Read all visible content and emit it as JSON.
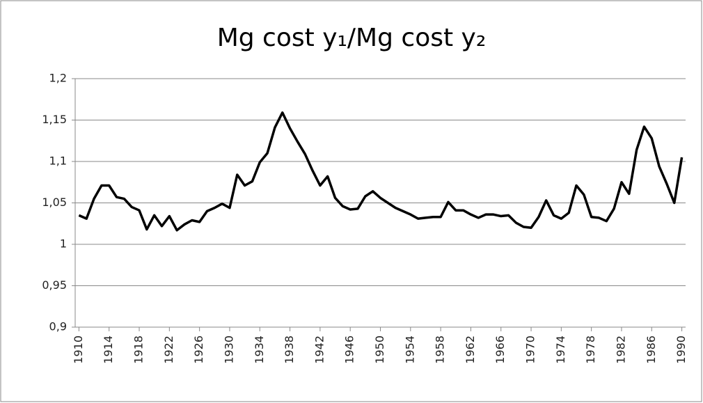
{
  "chart_data": {
    "type": "line",
    "title": "Mg cost y₁/Mg cost y₂",
    "x": [
      1910,
      1911,
      1912,
      1913,
      1914,
      1915,
      1916,
      1917,
      1918,
      1919,
      1920,
      1921,
      1922,
      1923,
      1924,
      1925,
      1926,
      1927,
      1928,
      1929,
      1930,
      1931,
      1932,
      1933,
      1934,
      1935,
      1936,
      1937,
      1938,
      1939,
      1940,
      1941,
      1942,
      1943,
      1944,
      1945,
      1946,
      1947,
      1948,
      1949,
      1950,
      1951,
      1952,
      1953,
      1954,
      1955,
      1956,
      1957,
      1958,
      1959,
      1960,
      1961,
      1962,
      1963,
      1964,
      1965,
      1966,
      1967,
      1968,
      1969,
      1970,
      1971,
      1972,
      1973,
      1974,
      1975,
      1976,
      1977,
      1978,
      1979,
      1980,
      1981,
      1982,
      1983,
      1984,
      1985,
      1986,
      1987,
      1988,
      1989,
      1990
    ],
    "values": [
      1.035,
      1.031,
      1.055,
      1.071,
      1.071,
      1.057,
      1.055,
      1.045,
      1.041,
      1.018,
      1.035,
      1.022,
      1.034,
      1.017,
      1.024,
      1.029,
      1.027,
      1.04,
      1.044,
      1.049,
      1.044,
      1.084,
      1.071,
      1.076,
      1.099,
      1.11,
      1.141,
      1.159,
      1.14,
      1.124,
      1.109,
      1.089,
      1.071,
      1.082,
      1.056,
      1.046,
      1.042,
      1.043,
      1.058,
      1.064,
      1.056,
      1.05,
      1.044,
      1.04,
      1.036,
      1.031,
      1.032,
      1.033,
      1.033,
      1.051,
      1.041,
      1.041,
      1.036,
      1.032,
      1.036,
      1.036,
      1.034,
      1.035,
      1.026,
      1.021,
      1.02,
      1.033,
      1.053,
      1.035,
      1.031,
      1.038,
      1.071,
      1.06,
      1.033,
      1.032,
      1.028,
      1.043,
      1.075,
      1.061,
      1.114,
      1.142,
      1.128,
      1.094,
      1.073,
      1.05,
      1.105
    ],
    "color": "#000000",
    "xlim": [
      1909.5,
      1990.5
    ],
    "xticks": [
      1910,
      1914,
      1918,
      1922,
      1926,
      1930,
      1934,
      1938,
      1942,
      1946,
      1950,
      1954,
      1958,
      1962,
      1966,
      1970,
      1974,
      1978,
      1982,
      1986,
      1990
    ],
    "ylim": [
      0.9,
      1.2
    ],
    "yticks": [
      {
        "value": 0.9,
        "label": "0,9"
      },
      {
        "value": 0.95,
        "label": "0,95"
      },
      1,
      {
        "value": 1.05,
        "label": "1,05"
      },
      {
        "value": 1.1,
        "label": "1,1"
      },
      {
        "value": 1.15,
        "label": "1,15"
      },
      {
        "value": 1.2,
        "label": "1,2"
      }
    ],
    "grid": true
  }
}
